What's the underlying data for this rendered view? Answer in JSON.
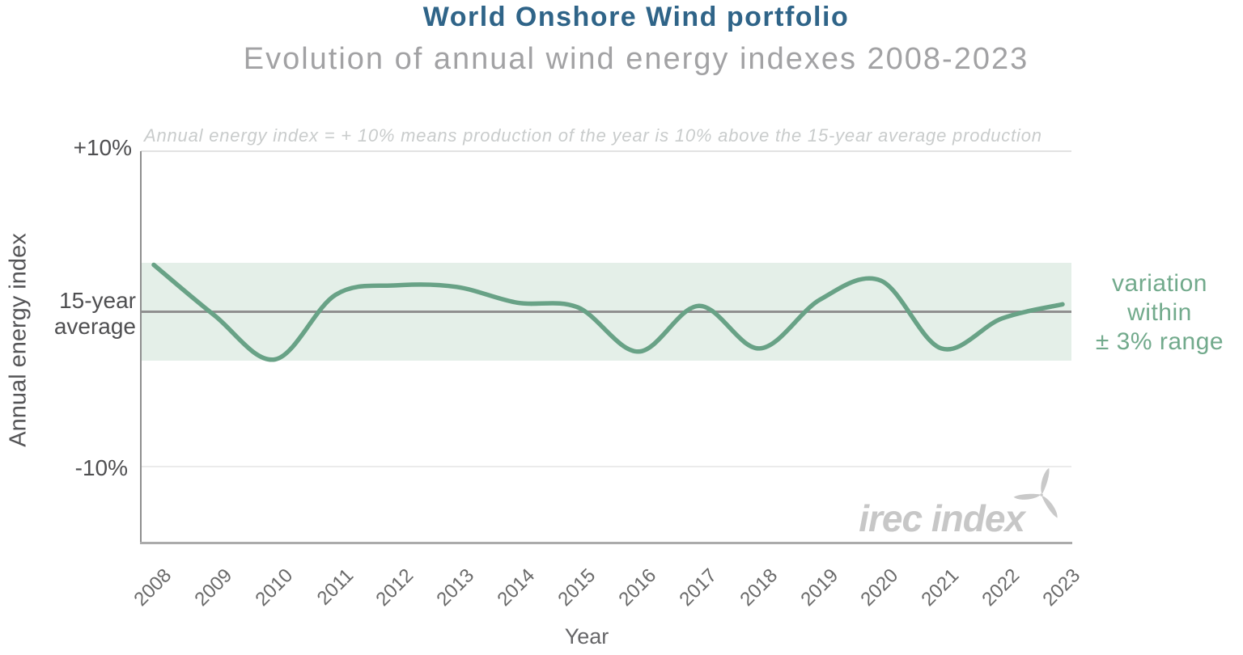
{
  "header": {
    "title": "World Onshore Wind portfolio",
    "subtitle": "Evolution of annual wind energy indexes 2008-2023"
  },
  "plot": {
    "note": "Annual energy index = + 10% means production of the year is 10% above the 15-year average production",
    "ytick_top": "+10%",
    "ytick_mid_line1": "15-year",
    "ytick_mid_line2": "average",
    "ytick_bottom": "-10%",
    "y_axis_title": "Annual energy index",
    "x_axis_title": "Year"
  },
  "band_label": {
    "line1": "variation",
    "line2": "within",
    "line3": "± 3% range"
  },
  "logo": {
    "text": "irec index",
    "icon": "wind-turbine-icon"
  },
  "colors": {
    "title": "#2f6488",
    "subtitle": "#a2a2a4",
    "note": "#c9cccc",
    "line": "#68a286",
    "band": "#e4efe8",
    "band_label": "#72aa8c",
    "average_line": "#8f8f8f",
    "gridline": "#e2e2e2",
    "axis_spine": "#ababab",
    "tick_label": "#6a6a6a",
    "logo": "#c7c7c7"
  },
  "chart_data": {
    "type": "line",
    "title": "World Onshore Wind portfolio",
    "subtitle": "Evolution of annual wind energy indexes 2008-2023",
    "annotation": "Annual energy index = + 10% means production of the year is 10% above the 15-year average production",
    "xlabel": "Year",
    "ylabel": "Annual energy index",
    "unit": "%",
    "x": [
      2008,
      2009,
      2010,
      2011,
      2012,
      2013,
      2014,
      2015,
      2016,
      2017,
      2018,
      2019,
      2020,
      2021,
      2022,
      2023
    ],
    "series": [
      {
        "name": "Annual energy index vs 15-year average (%)",
        "values": [
          3.0,
          -0.2,
          -3.0,
          1.1,
          1.7,
          1.6,
          0.6,
          0.3,
          -2.5,
          0.4,
          -2.3,
          0.8,
          2.0,
          -2.3,
          -0.4,
          0.5
        ]
      }
    ],
    "yticks": [
      {
        "value": 10,
        "label": "+10%"
      },
      {
        "value": 0,
        "label": "15-year average"
      },
      {
        "value": -10,
        "label": "-10%"
      }
    ],
    "ylim": [
      -14.6,
      10.1
    ],
    "reference_line": {
      "value": 0,
      "label": "15-year average"
    },
    "band": {
      "from": -3,
      "to": 3,
      "label": "variation within ± 3% range"
    },
    "smoothing": "spline",
    "legend": "none",
    "grid": "horizontal lines at +10% and -10% only"
  }
}
